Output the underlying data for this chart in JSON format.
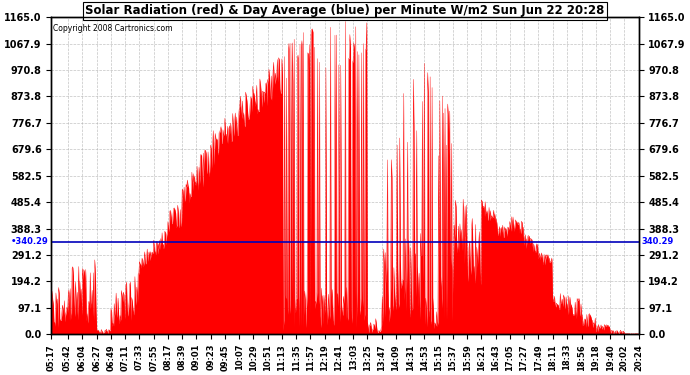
{
  "title": "Solar Radiation (red) & Day Average (blue) per Minute W/m2 Sun Jun 22 20:28",
  "copyright": "Copyright 2008 Cartronics.com",
  "ymax": 1165.0,
  "ymin": 0.0,
  "yticks": [
    0.0,
    97.1,
    194.2,
    291.2,
    388.3,
    485.4,
    582.5,
    679.6,
    776.7,
    873.8,
    970.8,
    1067.9,
    1165.0
  ],
  "day_average": 340.29,
  "background_color": "#ffffff",
  "grid_color": "#cccccc",
  "line_color_red": "#ff0000",
  "line_color_blue": "#0000bb",
  "x_labels": [
    "05:17",
    "05:42",
    "06:04",
    "06:27",
    "06:49",
    "07:11",
    "07:33",
    "07:55",
    "08:17",
    "08:39",
    "09:01",
    "09:23",
    "09:45",
    "10:07",
    "10:29",
    "10:51",
    "11:13",
    "11:35",
    "11:57",
    "12:19",
    "12:41",
    "13:03",
    "13:25",
    "13:47",
    "14:09",
    "14:31",
    "14:53",
    "15:15",
    "15:37",
    "15:59",
    "16:21",
    "16:43",
    "17:05",
    "17:27",
    "17:49",
    "18:11",
    "18:33",
    "18:56",
    "19:18",
    "19:40",
    "20:02",
    "20:24"
  ]
}
